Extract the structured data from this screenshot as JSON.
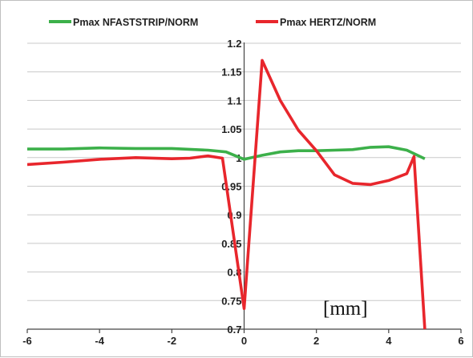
{
  "chart_data": {
    "type": "line",
    "title": "",
    "xlabel": "",
    "ylabel": "",
    "unit_annotation": "[mm]",
    "xlim": [
      -6,
      6
    ],
    "ylim": [
      0.7,
      1.2
    ],
    "x_ticks": [
      -6,
      -4,
      -2,
      0,
      2,
      4,
      6
    ],
    "y_ticks": [
      0.7,
      0.75,
      0.8,
      0.85,
      0.9,
      0.95,
      1,
      1.05,
      1.1,
      1.15,
      1.2
    ],
    "grid": "horizontal",
    "legend_position": "top",
    "series": [
      {
        "name": "Pmax NFASTSTRIP/NORM",
        "color": "#3cb04a",
        "points": [
          [
            -6,
            1.015
          ],
          [
            -5,
            1.015
          ],
          [
            -4,
            1.017
          ],
          [
            -3,
            1.016
          ],
          [
            -2,
            1.016
          ],
          [
            -1,
            1.013
          ],
          [
            -0.5,
            1.01
          ],
          [
            0,
            0.997
          ],
          [
            0.5,
            1.004
          ],
          [
            1,
            1.01
          ],
          [
            1.5,
            1.012
          ],
          [
            2,
            1.012
          ],
          [
            2.5,
            1.013
          ],
          [
            3,
            1.014
          ],
          [
            3.5,
            1.018
          ],
          [
            4,
            1.019
          ],
          [
            4.5,
            1.013
          ],
          [
            5,
            0.998
          ]
        ]
      },
      {
        "name": "Pmax HERTZ/NORM",
        "color": "#e8262c",
        "points": [
          [
            -6,
            0.988
          ],
          [
            -5,
            0.992
          ],
          [
            -4,
            0.997
          ],
          [
            -3,
            1.0
          ],
          [
            -2,
            0.998
          ],
          [
            -1.5,
            0.999
          ],
          [
            -1,
            1.003
          ],
          [
            -0.6,
            0.999
          ],
          [
            0,
            0.736
          ],
          [
            0.5,
            1.17
          ],
          [
            1,
            1.1
          ],
          [
            1.5,
            1.048
          ],
          [
            2,
            1.012
          ],
          [
            2.5,
            0.97
          ],
          [
            3,
            0.955
          ],
          [
            3.5,
            0.953
          ],
          [
            4,
            0.96
          ],
          [
            4.5,
            0.972
          ],
          [
            4.7,
            1.002
          ],
          [
            5,
            0.7
          ]
        ]
      }
    ]
  }
}
